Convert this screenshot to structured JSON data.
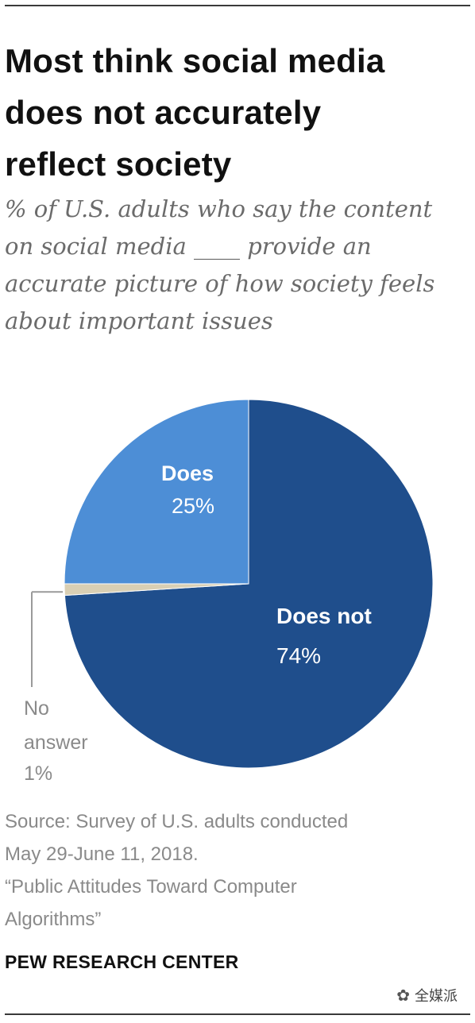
{
  "title_lines": [
    "Most think social media",
    "does not accurately",
    "reflect society"
  ],
  "subtitle_lines": [
    "% of U.S. adults who say the content",
    "on social media ____ provide an",
    "accurate picture of how society feels",
    "about important issues"
  ],
  "chart_data": {
    "type": "pie",
    "slices": [
      {
        "label": "Does not",
        "value": 74,
        "value_label": "74%",
        "color": "#1f4e8c"
      },
      {
        "label": "No",
        "label2": "answer",
        "value": 1,
        "value_label": "1%",
        "color": "#d9cfb4"
      },
      {
        "label": "Does",
        "value": 25,
        "value_label": "25%",
        "color": "#4d8ed6"
      }
    ]
  },
  "source_lines": [
    "Source: Survey of U.S. adults conducted",
    "May 29-June 11, 2018.",
    "“Public Attitudes Toward Computer",
    "Algorithms”"
  ],
  "brand": "PEW RESEARCH CENTER",
  "watermark": {
    "icon": "wechat-icon",
    "text": "全媒派"
  }
}
